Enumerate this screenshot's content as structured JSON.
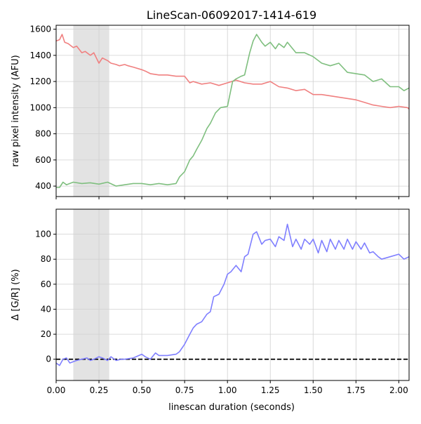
{
  "figure": {
    "title": "LineScan-06092017-1414-619",
    "xlabel": "linescan duration (seconds)"
  },
  "chart_data": [
    {
      "type": "line",
      "title": "LineScan-06092017-1414-619",
      "xlabel": "",
      "ylabel": "raw pixel intensity (AFU)",
      "xlim": [
        0.0,
        2.06
      ],
      "ylim": [
        320,
        1630
      ],
      "xticks": [
        0.0,
        0.25,
        0.5,
        0.75,
        1.0,
        1.25,
        1.5,
        1.75,
        2.0
      ],
      "xtick_labels": [],
      "yticks": [
        400,
        600,
        800,
        1000,
        1200,
        1400,
        1600
      ],
      "ytick_labels": [
        "400",
        "600",
        "800",
        "1000",
        "1200",
        "1400",
        "1600"
      ],
      "grid": true,
      "shaded_region": [
        0.1,
        0.31
      ],
      "series": [
        {
          "color": "#f08080",
          "x": [
            0.0,
            0.02,
            0.035,
            0.05,
            0.07,
            0.1,
            0.12,
            0.15,
            0.17,
            0.2,
            0.22,
            0.25,
            0.27,
            0.3,
            0.32,
            0.35,
            0.37,
            0.4,
            0.42,
            0.45,
            0.5,
            0.52,
            0.55,
            0.6,
            0.65,
            0.7,
            0.75,
            0.78,
            0.8,
            0.85,
            0.9,
            0.95,
            1.0,
            1.05,
            1.1,
            1.15,
            1.2,
            1.25,
            1.3,
            1.35,
            1.4,
            1.45,
            1.5,
            1.55,
            1.6,
            1.65,
            1.7,
            1.75,
            1.8,
            1.85,
            1.9,
            1.95,
            2.0,
            2.05,
            2.06
          ],
          "y": [
            1510,
            1520,
            1560,
            1500,
            1490,
            1460,
            1470,
            1420,
            1430,
            1400,
            1420,
            1340,
            1380,
            1360,
            1340,
            1330,
            1320,
            1330,
            1320,
            1310,
            1290,
            1280,
            1260,
            1250,
            1250,
            1240,
            1240,
            1190,
            1200,
            1180,
            1190,
            1170,
            1190,
            1210,
            1190,
            1180,
            1180,
            1200,
            1160,
            1150,
            1130,
            1140,
            1100,
            1100,
            1090,
            1080,
            1070,
            1060,
            1040,
            1020,
            1010,
            1000,
            1010,
            1000,
            990
          ]
        },
        {
          "color": "#7fbf7f",
          "x": [
            0.0,
            0.02,
            0.04,
            0.06,
            0.08,
            0.1,
            0.15,
            0.2,
            0.25,
            0.3,
            0.35,
            0.4,
            0.45,
            0.5,
            0.55,
            0.6,
            0.65,
            0.7,
            0.72,
            0.75,
            0.78,
            0.8,
            0.82,
            0.85,
            0.88,
            0.9,
            0.93,
            0.96,
            1.0,
            1.03,
            1.05,
            1.08,
            1.1,
            1.13,
            1.15,
            1.17,
            1.2,
            1.22,
            1.25,
            1.28,
            1.3,
            1.33,
            1.35,
            1.4,
            1.45,
            1.5,
            1.55,
            1.6,
            1.65,
            1.7,
            1.75,
            1.8,
            1.85,
            1.9,
            1.95,
            2.0,
            2.03,
            2.06
          ],
          "y": [
            390,
            390,
            430,
            410,
            420,
            430,
            420,
            425,
            415,
            430,
            400,
            410,
            420,
            420,
            410,
            420,
            410,
            420,
            470,
            510,
            600,
            630,
            680,
            750,
            840,
            880,
            960,
            1000,
            1010,
            1200,
            1220,
            1240,
            1250,
            1420,
            1510,
            1560,
            1500,
            1470,
            1500,
            1450,
            1490,
            1460,
            1500,
            1420,
            1420,
            1390,
            1340,
            1320,
            1340,
            1270,
            1260,
            1250,
            1200,
            1220,
            1160,
            1160,
            1130,
            1150
          ]
        }
      ]
    },
    {
      "type": "line",
      "title": "",
      "xlabel": "linescan duration (seconds)",
      "ylabel": "Δ [G/R] (%)",
      "xlim": [
        0.0,
        2.06
      ],
      "ylim": [
        -17,
        120
      ],
      "xticks": [
        0.0,
        0.25,
        0.5,
        0.75,
        1.0,
        1.25,
        1.5,
        1.75,
        2.0
      ],
      "xtick_labels": [
        "0.00",
        "0.25",
        "0.50",
        "0.75",
        "1.00",
        "1.25",
        "1.50",
        "1.75",
        "2.00"
      ],
      "yticks": [
        0,
        20,
        40,
        60,
        80,
        100
      ],
      "ytick_labels": [
        "0",
        "20",
        "40",
        "60",
        "80",
        "100"
      ],
      "grid": true,
      "shaded_region": [
        0.1,
        0.31
      ],
      "hline": {
        "y": 0,
        "style": "dashed",
        "color": "#000000"
      },
      "series": [
        {
          "color": "#7f7fff",
          "x": [
            0.0,
            0.02,
            0.04,
            0.06,
            0.08,
            0.1,
            0.12,
            0.15,
            0.18,
            0.2,
            0.22,
            0.25,
            0.27,
            0.3,
            0.32,
            0.35,
            0.38,
            0.4,
            0.45,
            0.5,
            0.52,
            0.55,
            0.58,
            0.6,
            0.65,
            0.7,
            0.72,
            0.75,
            0.78,
            0.8,
            0.82,
            0.85,
            0.88,
            0.9,
            0.92,
            0.95,
            0.98,
            1.0,
            1.02,
            1.05,
            1.08,
            1.1,
            1.12,
            1.15,
            1.17,
            1.2,
            1.22,
            1.25,
            1.28,
            1.3,
            1.33,
            1.35,
            1.38,
            1.4,
            1.43,
            1.45,
            1.48,
            1.5,
            1.53,
            1.55,
            1.58,
            1.6,
            1.63,
            1.65,
            1.68,
            1.7,
            1.73,
            1.75,
            1.78,
            1.8,
            1.83,
            1.85,
            1.88,
            1.9,
            1.95,
            2.0,
            2.03,
            2.06
          ],
          "y": [
            -3,
            -5,
            0,
            1,
            -3,
            -2,
            -1,
            0,
            1,
            -1,
            0,
            2,
            1,
            -1,
            2,
            -1,
            0,
            0,
            1,
            4,
            2,
            0,
            5,
            3,
            3,
            4,
            6,
            12,
            20,
            25,
            28,
            30,
            36,
            38,
            50,
            52,
            60,
            68,
            70,
            75,
            70,
            82,
            84,
            100,
            102,
            92,
            95,
            96,
            90,
            98,
            95,
            108,
            90,
            96,
            88,
            96,
            92,
            96,
            85,
            95,
            86,
            96,
            88,
            95,
            88,
            96,
            88,
            94,
            88,
            93,
            85,
            86,
            82,
            80,
            82,
            84,
            80,
            82
          ]
        }
      ]
    }
  ]
}
